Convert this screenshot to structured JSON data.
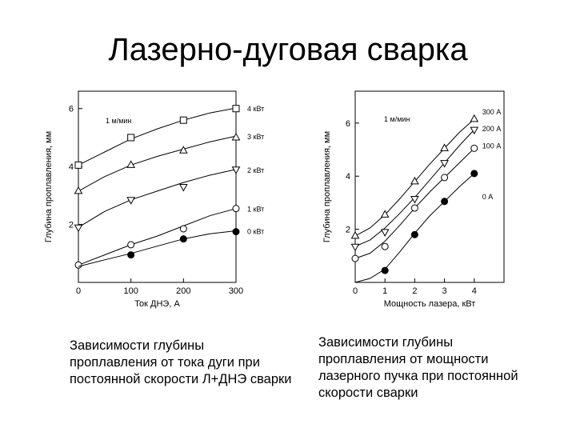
{
  "slide": {
    "title": "Лазерно-дуговая сварка",
    "caption_left": "Зависимости глубины проплавления от тока дуги при постоянной скорости Л+ДНЭ сварки",
    "caption_right": "Зависимости глубины проплавления от мощности лазерного пучка при постоянной скорости сварки"
  },
  "chart_data": [
    {
      "type": "line",
      "xlabel": "Ток ДНЭ, А",
      "ylabel": "Глубина проплавления, мм",
      "annotation": "1 м/мин",
      "xlim": [
        0,
        300
      ],
      "ylim": [
        0,
        6.6
      ],
      "xticks": [
        0,
        100,
        200,
        300
      ],
      "yticks": [
        2,
        4,
        6
      ],
      "grid": false,
      "series": [
        {
          "name": "4 кВт",
          "marker": "square",
          "x": [
            0,
            100,
            200,
            300
          ],
          "y": [
            4.05,
            5.0,
            5.6,
            6.0
          ],
          "curve": [
            [
              0,
              4.05
            ],
            [
              50,
              4.5
            ],
            [
              100,
              4.95
            ],
            [
              150,
              5.3
            ],
            [
              200,
              5.6
            ],
            [
              250,
              5.85
            ],
            [
              300,
              6.02
            ]
          ]
        },
        {
          "name": "3 кВт",
          "marker": "triangle-up",
          "x": [
            0,
            100,
            200,
            300
          ],
          "y": [
            3.15,
            4.05,
            4.55,
            5.0
          ],
          "curve": [
            [
              0,
              3.15
            ],
            [
              50,
              3.65
            ],
            [
              100,
              4.05
            ],
            [
              150,
              4.35
            ],
            [
              200,
              4.6
            ],
            [
              250,
              4.85
            ],
            [
              300,
              5.05
            ]
          ]
        },
        {
          "name": "2 кВт",
          "marker": "triangle-down",
          "x": [
            0,
            100,
            200,
            300
          ],
          "y": [
            1.9,
            2.85,
            3.3,
            3.9
          ],
          "curve": [
            [
              0,
              1.9
            ],
            [
              50,
              2.45
            ],
            [
              100,
              2.85
            ],
            [
              150,
              3.15
            ],
            [
              200,
              3.45
            ],
            [
              250,
              3.7
            ],
            [
              300,
              3.9
            ]
          ]
        },
        {
          "name": "1 кВт",
          "marker": "circle-open",
          "x": [
            0,
            100,
            200,
            300
          ],
          "y": [
            0.6,
            1.3,
            1.85,
            2.55
          ],
          "curve": [
            [
              0,
              0.6
            ],
            [
              50,
              0.95
            ],
            [
              100,
              1.3
            ],
            [
              150,
              1.6
            ],
            [
              200,
              1.95
            ],
            [
              250,
              2.3
            ],
            [
              300,
              2.55
            ]
          ]
        },
        {
          "name": "0 кВт",
          "marker": "circle-filled",
          "x": [
            100,
            200,
            300
          ],
          "y": [
            0.95,
            1.5,
            1.75
          ],
          "curve": [
            [
              0,
              0.55
            ],
            [
              50,
              0.78
            ],
            [
              100,
              1.0
            ],
            [
              150,
              1.25
            ],
            [
              200,
              1.5
            ],
            [
              250,
              1.68
            ],
            [
              300,
              1.78
            ]
          ]
        }
      ]
    },
    {
      "type": "line",
      "xlabel": "Мощность лазера, кВт",
      "ylabel": "Глубина проплавления, мм",
      "annotation": "1 м/мин",
      "xlim": [
        0,
        5
      ],
      "ylim": [
        0,
        7.2
      ],
      "xticks": [
        0,
        1,
        2,
        3,
        4
      ],
      "yticks": [
        2,
        4,
        6
      ],
      "grid": false,
      "series": [
        {
          "name": "300 А",
          "marker": "triangle-up",
          "x": [
            0,
            1,
            2,
            3,
            4
          ],
          "y": [
            1.75,
            2.55,
            3.8,
            5.05,
            6.15
          ],
          "curve": [
            [
              0,
              1.75
            ],
            [
              0.5,
              2.05
            ],
            [
              1,
              2.55
            ],
            [
              1.5,
              3.15
            ],
            [
              2,
              3.8
            ],
            [
              2.5,
              4.45
            ],
            [
              3,
              5.05
            ],
            [
              3.5,
              5.65
            ],
            [
              4,
              6.15
            ]
          ]
        },
        {
          "name": "200 А",
          "marker": "triangle-down",
          "x": [
            0,
            1,
            2,
            3,
            4
          ],
          "y": [
            1.35,
            1.9,
            3.15,
            4.5,
            5.75
          ],
          "curve": [
            [
              0,
              1.35
            ],
            [
              0.5,
              1.6
            ],
            [
              1,
              2.05
            ],
            [
              1.5,
              2.6
            ],
            [
              2,
              3.2
            ],
            [
              2.5,
              3.85
            ],
            [
              3,
              4.5
            ],
            [
              3.5,
              5.15
            ],
            [
              4,
              5.75
            ]
          ]
        },
        {
          "name": "100 А",
          "marker": "circle-open",
          "x": [
            0,
            1,
            2,
            3,
            4
          ],
          "y": [
            0.9,
            1.35,
            2.8,
            3.95,
            5.05
          ],
          "curve": [
            [
              0,
              0.9
            ],
            [
              0.5,
              1.1
            ],
            [
              1,
              1.55
            ],
            [
              1.5,
              2.15
            ],
            [
              2,
              2.8
            ],
            [
              2.5,
              3.4
            ],
            [
              3,
              3.95
            ],
            [
              3.5,
              4.5
            ],
            [
              4,
              5.05
            ]
          ]
        },
        {
          "name": "0 А",
          "marker": "circle-filled",
          "x": [
            1,
            2,
            3,
            4
          ],
          "y": [
            0.45,
            1.8,
            3.05,
            4.1
          ],
          "curve": [
            [
              0,
              0.0
            ],
            [
              0.5,
              0.15
            ],
            [
              1,
              0.5
            ],
            [
              1.5,
              1.15
            ],
            [
              2,
              1.85
            ],
            [
              2.5,
              2.5
            ],
            [
              3,
              3.05
            ],
            [
              3.5,
              3.6
            ],
            [
              4,
              4.1
            ]
          ]
        }
      ]
    }
  ]
}
